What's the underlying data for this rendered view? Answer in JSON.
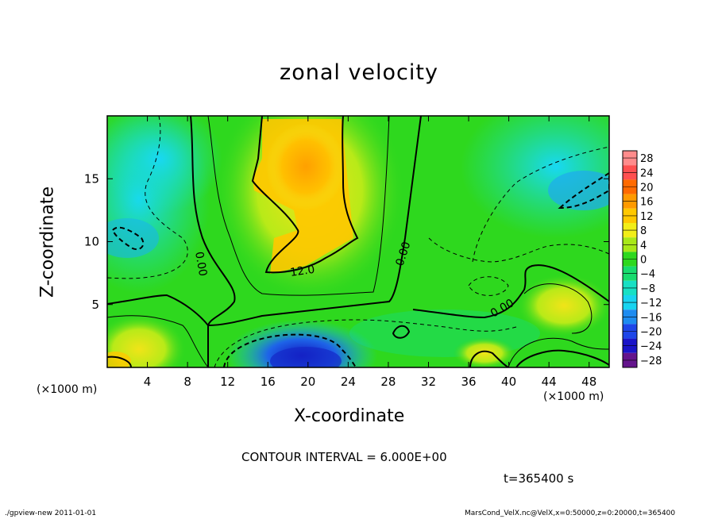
{
  "chart_data": {
    "type": "heatmap",
    "title": "zonal velocity",
    "xlabel": "X-coordinate",
    "ylabel": "Z-coordinate",
    "x_unit_left": "(×1000 m)",
    "x_unit_right": "(×1000 m)",
    "xlim": [
      0,
      50
    ],
    "ylim": [
      0,
      20
    ],
    "x_ticks": [
      4,
      8,
      12,
      16,
      20,
      24,
      28,
      32,
      36,
      40,
      44,
      48
    ],
    "y_ticks": [
      5,
      10,
      15
    ],
    "colorbar": {
      "levels": [
        28,
        24,
        20,
        16,
        12,
        8,
        4,
        0,
        -4,
        -8,
        -12,
        -16,
        -20,
        -24,
        -28
      ],
      "colors": [
        "#ff8c8c",
        "#ff5050",
        "#ff6a00",
        "#ff9a00",
        "#ffc800",
        "#f2ee18",
        "#a8e818",
        "#2ed81e",
        "#18dc6e",
        "#18e0c4",
        "#18d4f0",
        "#1e8cf0",
        "#1e46e8",
        "#1a14c8",
        "#64148c"
      ]
    },
    "contour_labels": [
      "0.00",
      "12.0",
      "0.00",
      "0.00"
    ],
    "contour_interval_text": "CONTOUR INTERVAL = 6.000E+00",
    "time_text": "t=365400 s"
  },
  "footer": {
    "left": "./gpview-new   2011-01-01",
    "right": "MarsCond_VelX.nc@VelX,x=0:50000,z=0:20000,t=365400"
  }
}
